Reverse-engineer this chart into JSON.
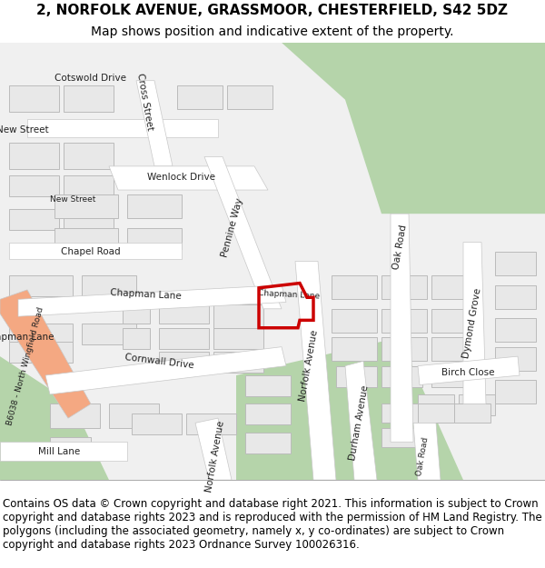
{
  "title": "2, NORFOLK AVENUE, GRASSMOOR, CHESTERFIELD, S42 5DZ",
  "subtitle": "Map shows position and indicative extent of the property.",
  "footer": "Contains OS data © Crown copyright and database right 2021. This information is subject to Crown copyright and database rights 2023 and is reproduced with the permission of HM Land Registry. The polygons (including the associated geometry, namely x, y co-ordinates) are subject to Crown copyright and database rights 2023 Ordnance Survey 100026316.",
  "title_fontsize": 11,
  "subtitle_fontsize": 10,
  "footer_fontsize": 8.5,
  "map_bg": "#f0f0f0",
  "road_color": "#ffffff",
  "road_edge_color": "#cccccc",
  "building_color": "#e8e8e8",
  "building_edge_color": "#bbbbbb",
  "green_area_color": "#b5d4aa",
  "highlight_plot_color": "#cc0000",
  "road_salmon_color": "#f4a882",
  "title_bg": "#ffffff",
  "footer_bg": "#ffffff",
  "map_border_color": "#aaaaaa",
  "label_fontsize": 7.5,
  "label_small_fontsize": 6.5,
  "label_color": "#222222"
}
